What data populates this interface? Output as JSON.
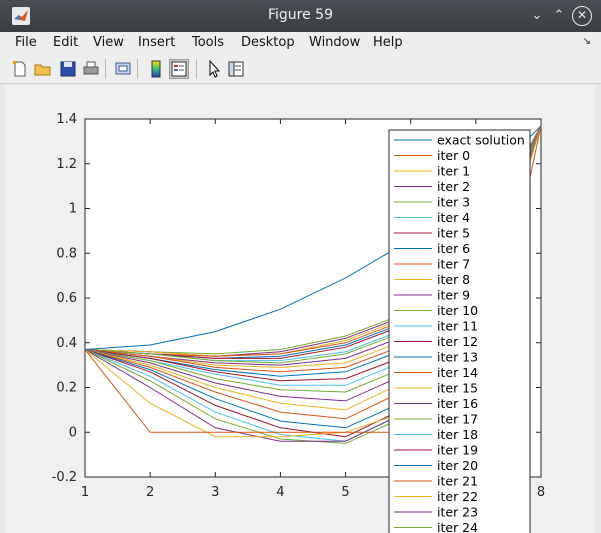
{
  "window": {
    "title": "Figure 59"
  },
  "menu": {
    "items": [
      "File",
      "Edit",
      "View",
      "Insert",
      "Tools",
      "Desktop",
      "Window",
      "Help"
    ]
  },
  "toolbar": {
    "buttons": [
      "new-figure-icon",
      "open-file-icon",
      "save-icon",
      "print-icon",
      "print-preview-icon",
      "colorbar-icon",
      "legend-icon",
      "pointer-icon",
      "property-editor-icon"
    ]
  },
  "chart_data": {
    "type": "line",
    "x": [
      1,
      2,
      3,
      4,
      5,
      6,
      7,
      8
    ],
    "xlim": [
      1,
      8
    ],
    "ylim": [
      -0.2,
      1.4
    ],
    "xticks": [
      1,
      2,
      3,
      4,
      5,
      6,
      7,
      8
    ],
    "yticks": [
      -0.2,
      0,
      0.2,
      0.4,
      0.6,
      0.8,
      1,
      1.2,
      1.4
    ],
    "grid": false,
    "legend_position": "right",
    "series": [
      {
        "name": "exact solution",
        "color": "#0072bd",
        "values": [
          0.37,
          0.39,
          0.45,
          0.55,
          0.69,
          0.86,
          1.07,
          1.37
        ]
      },
      {
        "name": "iter 0",
        "color": "#d95319",
        "values": [
          0.37,
          0.0,
          0.0,
          0.0,
          0.0,
          0.0,
          0.0,
          1.37
        ]
      },
      {
        "name": "iter 1",
        "color": "#edb120",
        "values": [
          0.37,
          0.13,
          -0.02,
          -0.02,
          0.0,
          0.1,
          0.4,
          1.37
        ]
      },
      {
        "name": "iter 2",
        "color": "#7e2f8e",
        "values": [
          0.37,
          0.2,
          0.02,
          -0.04,
          -0.04,
          0.1,
          0.45,
          1.37
        ]
      },
      {
        "name": "iter 3",
        "color": "#77ac30",
        "values": [
          0.37,
          0.23,
          0.06,
          -0.03,
          -0.05,
          0.08,
          0.5,
          1.37
        ]
      },
      {
        "name": "iter 4",
        "color": "#4dbeee",
        "values": [
          0.37,
          0.25,
          0.09,
          -0.01,
          -0.04,
          0.1,
          0.53,
          1.37
        ]
      },
      {
        "name": "iter 5",
        "color": "#a2142f",
        "values": [
          0.37,
          0.27,
          0.12,
          0.02,
          -0.02,
          0.12,
          0.55,
          1.37
        ]
      },
      {
        "name": "iter 6",
        "color": "#0072bd",
        "values": [
          0.37,
          0.28,
          0.15,
          0.05,
          0.02,
          0.15,
          0.58,
          1.37
        ]
      },
      {
        "name": "iter 7",
        "color": "#d95319",
        "values": [
          0.37,
          0.29,
          0.18,
          0.09,
          0.06,
          0.2,
          0.6,
          1.37
        ]
      },
      {
        "name": "iter 8",
        "color": "#edb120",
        "values": [
          0.37,
          0.3,
          0.2,
          0.13,
          0.1,
          0.24,
          0.63,
          1.37
        ]
      },
      {
        "name": "iter 9",
        "color": "#7e2f8e",
        "values": [
          0.37,
          0.31,
          0.22,
          0.16,
          0.14,
          0.27,
          0.65,
          1.37
        ]
      },
      {
        "name": "iter 10",
        "color": "#77ac30",
        "values": [
          0.37,
          0.32,
          0.24,
          0.19,
          0.18,
          0.3,
          0.67,
          1.37
        ]
      },
      {
        "name": "iter 11",
        "color": "#4dbeee",
        "values": [
          0.37,
          0.32,
          0.26,
          0.21,
          0.21,
          0.33,
          0.69,
          1.37
        ]
      },
      {
        "name": "iter 12",
        "color": "#a2142f",
        "values": [
          0.37,
          0.33,
          0.27,
          0.23,
          0.24,
          0.35,
          0.7,
          1.37
        ]
      },
      {
        "name": "iter 13",
        "color": "#0072bd",
        "values": [
          0.37,
          0.33,
          0.28,
          0.25,
          0.27,
          0.38,
          0.72,
          1.37
        ]
      },
      {
        "name": "iter 14",
        "color": "#d95319",
        "values": [
          0.37,
          0.34,
          0.29,
          0.27,
          0.29,
          0.4,
          0.73,
          1.37
        ]
      },
      {
        "name": "iter 15",
        "color": "#edb120",
        "values": [
          0.37,
          0.34,
          0.3,
          0.29,
          0.31,
          0.42,
          0.74,
          1.37
        ]
      },
      {
        "name": "iter 16",
        "color": "#7e2f8e",
        "values": [
          0.37,
          0.34,
          0.31,
          0.3,
          0.33,
          0.44,
          0.75,
          1.37
        ]
      },
      {
        "name": "iter 17",
        "color": "#77ac30",
        "values": [
          0.37,
          0.35,
          0.32,
          0.31,
          0.35,
          0.46,
          0.76,
          1.37
        ]
      },
      {
        "name": "iter 18",
        "color": "#4dbeee",
        "values": [
          0.37,
          0.35,
          0.32,
          0.32,
          0.36,
          0.47,
          0.77,
          1.37
        ]
      },
      {
        "name": "iter 19",
        "color": "#a2142f",
        "values": [
          0.37,
          0.35,
          0.33,
          0.33,
          0.38,
          0.49,
          0.78,
          1.37
        ]
      },
      {
        "name": "iter 20",
        "color": "#0072bd",
        "values": [
          0.37,
          0.35,
          0.33,
          0.34,
          0.39,
          0.5,
          0.79,
          1.37
        ]
      },
      {
        "name": "iter 21",
        "color": "#d95319",
        "values": [
          0.37,
          0.35,
          0.34,
          0.35,
          0.4,
          0.51,
          0.8,
          1.37
        ]
      },
      {
        "name": "iter 22",
        "color": "#edb120",
        "values": [
          0.37,
          0.36,
          0.34,
          0.35,
          0.41,
          0.52,
          0.81,
          1.37
        ]
      },
      {
        "name": "iter 23",
        "color": "#7e2f8e",
        "values": [
          0.37,
          0.36,
          0.34,
          0.36,
          0.42,
          0.53,
          0.82,
          1.37
        ]
      },
      {
        "name": "iter 24",
        "color": "#77ac30",
        "values": [
          0.37,
          0.36,
          0.35,
          0.37,
          0.43,
          0.54,
          0.83,
          1.37
        ]
      }
    ]
  }
}
